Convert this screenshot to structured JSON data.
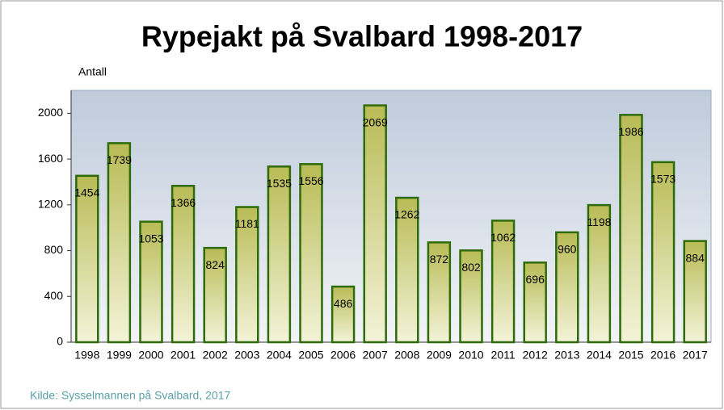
{
  "chart_data": {
    "type": "bar",
    "title": "Rypejakt på Svalbard 1998-2017",
    "y_label": "Antall",
    "source": "Kilde: Sysselmannen på Svalbard, 2017",
    "categories": [
      "1998",
      "1999",
      "2000",
      "2001",
      "2002",
      "2003",
      "2004",
      "2005",
      "2006",
      "2007",
      "2008",
      "2009",
      "2010",
      "2011",
      "2012",
      "2013",
      "2014",
      "2015",
      "2016",
      "2017"
    ],
    "values": [
      1454,
      1739,
      1053,
      1366,
      824,
      1181,
      1535,
      1556,
      486,
      2069,
      1262,
      872,
      802,
      1062,
      696,
      960,
      1198,
      1986,
      1573,
      884
    ],
    "color": "#b8bb55",
    "ylim": [
      0,
      2200
    ],
    "yticks": [
      0,
      400,
      800,
      1200,
      1600,
      2000
    ],
    "grid": false
  }
}
